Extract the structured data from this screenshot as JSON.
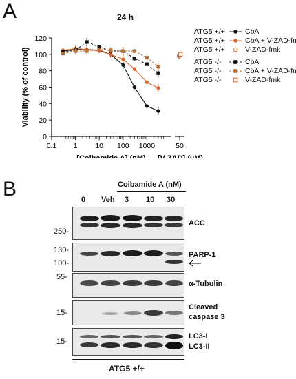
{
  "panel_a": {
    "letter": "A",
    "title": "24 h",
    "legend": [
      {
        "line": "ATG5 +/+",
        "label": "CbA",
        "marker": "filled-circle",
        "color": "#111111",
        "dash": false
      },
      {
        "line": "ATG5 +/+",
        "label": "CbA + V-ZAD-fmk",
        "marker": "filled-circle",
        "color": "#d9652b",
        "dash": false
      },
      {
        "line": "ATG5 +/+",
        "label": "V-ZAD-fmk",
        "marker": "open-circle",
        "color": "#d9652b",
        "dash": false
      },
      {
        "line": "ATG5 -/-",
        "label": "CbA",
        "marker": "filled-square",
        "color": "#111111",
        "dash": true
      },
      {
        "line": "ATG5 -/-",
        "label": "CbA + V-ZAD-fmk",
        "marker": "filled-square",
        "color": "#b8733a",
        "dash": true
      },
      {
        "line": "ATG5 -/-",
        "label": "V-ZAD-fmk",
        "marker": "open-square",
        "color": "#d9652b",
        "dash": true
      }
    ]
  },
  "chart_data": {
    "type": "line",
    "title": "24 h",
    "ylabel": "Viability (% of control)",
    "xlabel": "[Coibamide A] (nM)",
    "xlabel2": "[V-ZAD] (µM)",
    "xscale": "log",
    "xlim": [
      0.1,
      10000
    ],
    "ylim": [
      0,
      120
    ],
    "yticks": [
      0,
      20,
      40,
      60,
      80,
      100,
      120
    ],
    "xticks": [
      "0.1",
      "1",
      "10",
      "100",
      "1000"
    ],
    "xticks2": [
      "50"
    ],
    "grid": false,
    "legend_position": "right",
    "series": [
      {
        "name": "ATG5 +/+ CbA",
        "x": [
          0.3,
          1,
          3,
          10,
          30,
          100,
          300,
          1000,
          3000
        ],
        "y": [
          104,
          106,
          106,
          105,
          100,
          87,
          60,
          37,
          31
        ]
      },
      {
        "name": "ATG5 +/+ CbA + V-ZAD-fmk",
        "x": [
          0.3,
          1,
          3,
          10,
          30,
          100,
          300,
          1000,
          3000
        ],
        "y": [
          105,
          107,
          106,
          104,
          100,
          94,
          82,
          66,
          59
        ]
      },
      {
        "name": "ATG5 +/+ V-ZAD-fmk",
        "x": [
          50
        ],
        "y": [
          98
        ]
      },
      {
        "name": "ATG5 -/- CbA",
        "x": [
          0.3,
          1,
          3,
          10,
          30,
          100,
          300,
          1000,
          3000
        ],
        "y": [
          103,
          105,
          115,
          109,
          104,
          104,
          95,
          88,
          77
        ]
      },
      {
        "name": "ATG5 -/- CbA + V-ZAD-fmk",
        "x": [
          0.3,
          1,
          3,
          10,
          30,
          100,
          300,
          1000,
          3000
        ],
        "y": [
          101,
          104,
          104,
          106,
          105,
          104,
          104,
          96,
          85
        ]
      },
      {
        "name": "ATG5 -/- V-ZAD-fmk",
        "x": [
          50
        ],
        "y": [
          100
        ]
      }
    ]
  },
  "panel_b": {
    "letter": "B",
    "treatment_label": "Coibamide A (nM)",
    "lanes": [
      "0",
      "Veh",
      "3",
      "10",
      "30"
    ],
    "blots": [
      {
        "label": "ACC",
        "markers": [
          "250-"
        ]
      },
      {
        "label": "PARP-1",
        "markers": [
          "130-",
          "100-"
        ]
      },
      {
        "label": "α-Tubulin",
        "markers": [
          "55-"
        ]
      },
      {
        "label": "Cleaved caspase 3",
        "label_lines": [
          "Cleaved",
          "caspase 3"
        ],
        "markers": [
          "15-"
        ]
      },
      {
        "label": "LC3",
        "label_lines": [
          "LC3-I",
          "LC3-II"
        ],
        "markers": [
          "15-"
        ]
      }
    ],
    "cell_line": "ATG5 +/+"
  }
}
